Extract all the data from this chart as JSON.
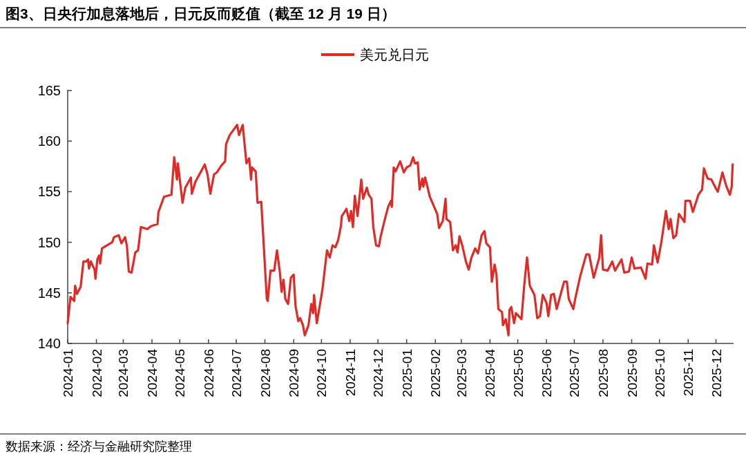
{
  "chart_data": {
    "type": "line",
    "title": "图3、日央行加息落地后，日元反而贬值（截至 12 月 19 日）",
    "annotations": [
      "数据来源：经济与金融研究院整理"
    ],
    "x": [
      "2024-01-01",
      "2024-01-04",
      "2024-01-08",
      "2024-01-09",
      "2024-01-11",
      "2024-01-15",
      "2024-01-18",
      "2024-01-21",
      "2024-01-23",
      "2024-01-24",
      "2024-01-26",
      "2024-01-30",
      "2024-01-31",
      "2024-02-02",
      "2024-02-04",
      "2024-02-05",
      "2024-02-07",
      "2024-02-18",
      "2024-02-20",
      "2024-02-25",
      "2024-02-28",
      "2024-03-03",
      "2024-03-05",
      "2024-03-07",
      "2024-03-10",
      "2024-03-14",
      "2024-03-17",
      "2024-03-20",
      "2024-03-27",
      "2024-03-31",
      "2024-04-07",
      "2024-04-08",
      "2024-04-14",
      "2024-04-22",
      "2024-04-25",
      "2024-04-28",
      "2024-04-29",
      "2024-05-04",
      "2024-05-07",
      "2024-05-13",
      "2024-05-14",
      "2024-05-18",
      "2024-05-24",
      "2024-05-28",
      "2024-05-31",
      "2024-06-03",
      "2024-06-07",
      "2024-06-10",
      "2024-06-15",
      "2024-06-19",
      "2024-06-20",
      "2024-06-24",
      "2024-07-02",
      "2024-07-04",
      "2024-07-08",
      "2024-07-12",
      "2024-07-15",
      "2024-07-17",
      "2024-07-18",
      "2024-07-22",
      "2024-07-24",
      "2024-07-28",
      "2024-08-03",
      "2024-08-04",
      "2024-08-07",
      "2024-08-11",
      "2024-08-14",
      "2024-08-17",
      "2024-08-19",
      "2024-08-21",
      "2024-08-23",
      "2024-08-26",
      "2024-08-29",
      "2024-09-01",
      "2024-09-03",
      "2024-09-06",
      "2024-09-08",
      "2024-09-11",
      "2024-09-13",
      "2024-09-17",
      "2024-09-20",
      "2024-09-22",
      "2024-09-23",
      "2024-09-26",
      "2024-10-02",
      "2024-10-07",
      "2024-10-10",
      "2024-10-13",
      "2024-10-16",
      "2024-10-19",
      "2024-10-22",
      "2024-10-23",
      "2024-10-26",
      "2024-10-28",
      "2024-10-31",
      "2024-11-02",
      "2024-11-04",
      "2024-11-06",
      "2024-11-09",
      "2024-11-13",
      "2024-11-15",
      "2024-11-19",
      "2024-11-21",
      "2024-11-24",
      "2024-11-26",
      "2024-11-29",
      "2024-12-02",
      "2024-12-04",
      "2024-12-08",
      "2024-12-12",
      "2024-12-15",
      "2024-12-16",
      "2024-12-18",
      "2024-12-20",
      "2024-12-25",
      "2024-12-29",
      "2025-01-01",
      "2025-01-05",
      "2025-01-08",
      "2025-01-10",
      "2025-01-13",
      "2025-01-15",
      "2025-01-18",
      "2025-01-19",
      "2025-01-21",
      "2025-01-26",
      "2025-02-03",
      "2025-02-05",
      "2025-02-09",
      "2025-02-12",
      "2025-02-13",
      "2025-02-17",
      "2025-02-20",
      "2025-02-23",
      "2025-02-25",
      "2025-02-27",
      "2025-03-02",
      "2025-03-06",
      "2025-03-09",
      "2025-03-12",
      "2025-03-16",
      "2025-03-19",
      "2025-03-23",
      "2025-03-26",
      "2025-03-28",
      "2025-04-01",
      "2025-04-03",
      "2025-04-06",
      "2025-04-08",
      "2025-04-10",
      "2025-04-14",
      "2025-04-15",
      "2025-04-18",
      "2025-04-21",
      "2025-04-22",
      "2025-04-24",
      "2025-04-27",
      "2025-04-29",
      "2025-05-05",
      "2025-05-08",
      "2025-05-11",
      "2025-05-14",
      "2025-05-19",
      "2025-05-22",
      "2025-05-25",
      "2025-05-28",
      "2025-06-01",
      "2025-06-03",
      "2025-06-06",
      "2025-06-09",
      "2025-06-12",
      "2025-06-17",
      "2025-06-20",
      "2025-06-23",
      "2025-06-25",
      "2025-06-30",
      "2025-07-02",
      "2025-07-07",
      "2025-07-10",
      "2025-07-14",
      "2025-07-17",
      "2025-07-22",
      "2025-07-28",
      "2025-07-30",
      "2025-08-01",
      "2025-08-06",
      "2025-08-11",
      "2025-08-14",
      "2025-08-21",
      "2025-08-24",
      "2025-08-29",
      "2025-09-01",
      "2025-09-04",
      "2025-09-11",
      "2025-09-16",
      "2025-09-18",
      "2025-09-23",
      "2025-09-25",
      "2025-09-29",
      "2025-10-03",
      "2025-10-08",
      "2025-10-11",
      "2025-10-13",
      "2025-10-16",
      "2025-10-19",
      "2025-10-22",
      "2025-10-28",
      "2025-10-29",
      "2025-11-03",
      "2025-11-06",
      "2025-11-10",
      "2025-11-12",
      "2025-11-16",
      "2025-11-18",
      "2025-11-22",
      "2025-11-26",
      "2025-12-01",
      "2025-12-03",
      "2025-12-08",
      "2025-12-12",
      "2025-12-16",
      "2025-12-18",
      "2025-12-19"
    ],
    "series": [
      {
        "name": "美元兑日元",
        "color": "#e02a26",
        "values": [
          142.0,
          144.6,
          144.2,
          145.7,
          144.9,
          145.6,
          148.1,
          148.1,
          148.3,
          147.4,
          148.1,
          147.3,
          146.4,
          148.3,
          148.7,
          147.9,
          149.4,
          150.0,
          150.5,
          150.7,
          149.9,
          150.5,
          149.6,
          147.1,
          147.0,
          149.0,
          149.2,
          151.5,
          151.3,
          151.6,
          151.8,
          153.0,
          154.5,
          154.7,
          158.4,
          156.2,
          157.8,
          153.9,
          155.4,
          156.4,
          154.8,
          156.0,
          157.0,
          157.7,
          156.7,
          154.8,
          156.7,
          156.9,
          157.6,
          158.0,
          159.7,
          160.6,
          161.6,
          160.6,
          161.6,
          157.8,
          158.3,
          156.2,
          157.4,
          157.0,
          153.9,
          154.0,
          144.4,
          144.2,
          147.2,
          147.2,
          149.2,
          147.1,
          145.1,
          146.3,
          144.4,
          143.9,
          146.5,
          146.8,
          143.7,
          142.2,
          142.5,
          141.8,
          140.8,
          141.8,
          143.9,
          143.0,
          144.8,
          142.0,
          145.3,
          149.2,
          148.5,
          149.7,
          149.5,
          150.2,
          151.6,
          152.6,
          153.0,
          153.3,
          152.1,
          153.1,
          151.5,
          154.6,
          152.6,
          156.2,
          154.3,
          155.4,
          154.7,
          154.3,
          151.5,
          149.7,
          149.6,
          150.6,
          152.1,
          153.5,
          154.1,
          153.5,
          157.4,
          157.0,
          158.0,
          156.9,
          157.4,
          157.6,
          158.4,
          157.8,
          157.9,
          155.2,
          156.3,
          155.5,
          156.4,
          154.5,
          152.8,
          151.4,
          152.1,
          154.3,
          152.3,
          152.0,
          149.2,
          149.7,
          149.0,
          150.6,
          149.7,
          148.1,
          147.3,
          148.5,
          149.4,
          148.9,
          150.7,
          151.1,
          149.9,
          149.5,
          146.1,
          147.8,
          146.8,
          143.4,
          143.1,
          141.8,
          142.4,
          140.8,
          143.3,
          143.6,
          142.0,
          143.0,
          142.4,
          145.8,
          148.5,
          145.7,
          144.8,
          142.5,
          142.7,
          144.8,
          144.0,
          142.7,
          144.8,
          144.9,
          143.4,
          145.1,
          146.1,
          146.1,
          144.4,
          143.4,
          144.4,
          146.5,
          147.5,
          148.8,
          148.8,
          146.5,
          148.5,
          150.7,
          147.3,
          147.2,
          148.1,
          147.2,
          148.3,
          147.0,
          147.1,
          148.5,
          147.4,
          147.5,
          146.4,
          147.9,
          147.8,
          149.7,
          148.0,
          150.0,
          153.1,
          151.3,
          152.3,
          150.4,
          150.7,
          152.8,
          152.0,
          154.1,
          154.1,
          153.0,
          154.1,
          154.7,
          155.2,
          157.3,
          156.3,
          156.2,
          155.3,
          155.0,
          156.9,
          155.6,
          154.7,
          155.5,
          157.7
        ]
      }
    ],
    "xlim": [
      "2024-01-01",
      "2025-12-20"
    ],
    "xticks": [
      {
        "value": "2024-01",
        "label": "2024-01"
      },
      {
        "value": "2024-02",
        "label": "2024-02"
      },
      {
        "value": "2024-03",
        "label": "2024-03"
      },
      {
        "value": "2024-04",
        "label": "2024-04"
      },
      {
        "value": "2024-05",
        "label": "2024-05"
      },
      {
        "value": "2024-06",
        "label": "2024-06"
      },
      {
        "value": "2024-07",
        "label": "2024-07"
      },
      {
        "value": "2024-08",
        "label": "2024-08"
      },
      {
        "value": "2024-09",
        "label": "2024-09"
      },
      {
        "value": "2024-10",
        "label": "2024-10"
      },
      {
        "value": "2024-11",
        "label": "2024-11"
      },
      {
        "value": "2024-12",
        "label": "2024-12"
      },
      {
        "value": "2025-01",
        "label": "2025-01"
      },
      {
        "value": "2025-02",
        "label": "2025-02"
      },
      {
        "value": "2025-03",
        "label": "2025-03"
      },
      {
        "value": "2025-04",
        "label": "2025-04"
      },
      {
        "value": "2025-05",
        "label": "2025-05"
      },
      {
        "value": "2025-06",
        "label": "2025-06"
      },
      {
        "value": "2025-07",
        "label": "2025-07"
      },
      {
        "value": "2025-08",
        "label": "2025-08"
      },
      {
        "value": "2025-09",
        "label": "2025-09"
      },
      {
        "value": "2025-10",
        "label": "2025-10"
      },
      {
        "value": "2025-11",
        "label": "2025-11"
      },
      {
        "value": "2025-12",
        "label": "2025-12"
      }
    ],
    "ylim": [
      140,
      165
    ],
    "yticks": [
      140,
      145,
      150,
      155,
      160,
      165
    ],
    "legend": "top"
  }
}
